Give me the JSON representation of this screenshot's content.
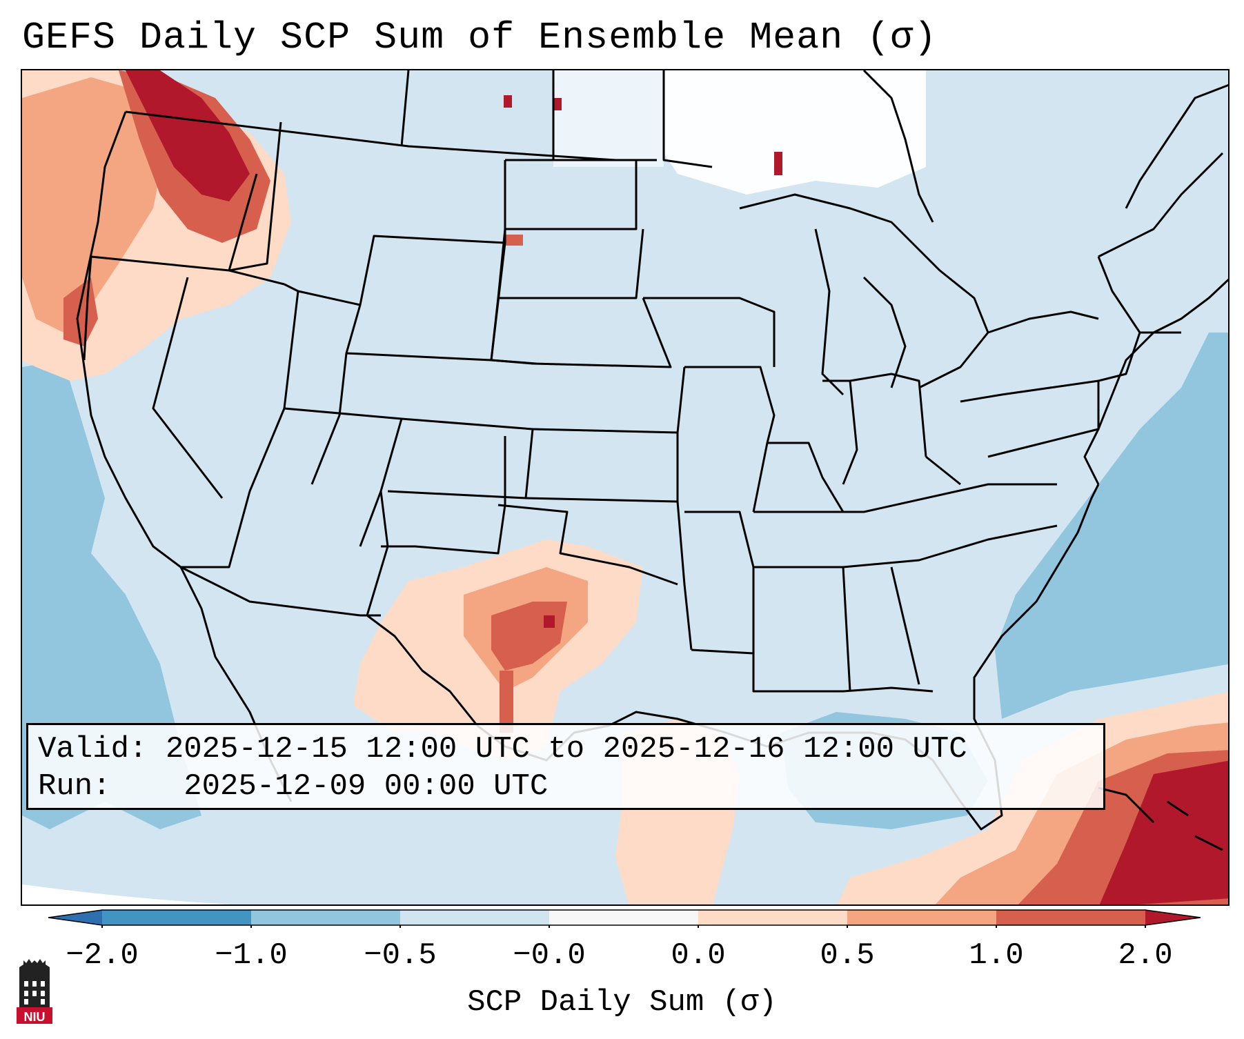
{
  "title": "GEFS Daily SCP Sum of Ensemble Mean (σ)",
  "info": {
    "valid_label": "Valid:",
    "valid_value": "2025-12-15 12:00 UTC to 2025-12-16 12:00 UTC",
    "run_label": "Run:",
    "run_value": "2025-12-09 00:00 UTC"
  },
  "colorbar": {
    "label": "SCP Daily Sum (σ)",
    "ticks": [
      "−2.0",
      "−1.0",
      "−0.5",
      "−0.0",
      "0.0",
      "0.5",
      "1.0",
      "2.0"
    ],
    "colors": {
      "under": "#2e6fb0",
      "bin_neg2_neg1": "#4393c3",
      "bin_neg1_neg05": "#92c5de",
      "bin_neg05_0": "#d1e5f0",
      "bin_0_0": "#f7f7f7",
      "bin_0_05": "#fddbc7",
      "bin_05_1": "#f4a582",
      "bin_1_2": "#d6604d",
      "over": "#b2182b"
    }
  },
  "map": {
    "region": "Contiguous United States and surrounding areas",
    "features": [
      "state borders",
      "coastlines",
      "shaded SCP anomaly grid"
    ]
  },
  "logo": {
    "text": "NIU"
  }
}
